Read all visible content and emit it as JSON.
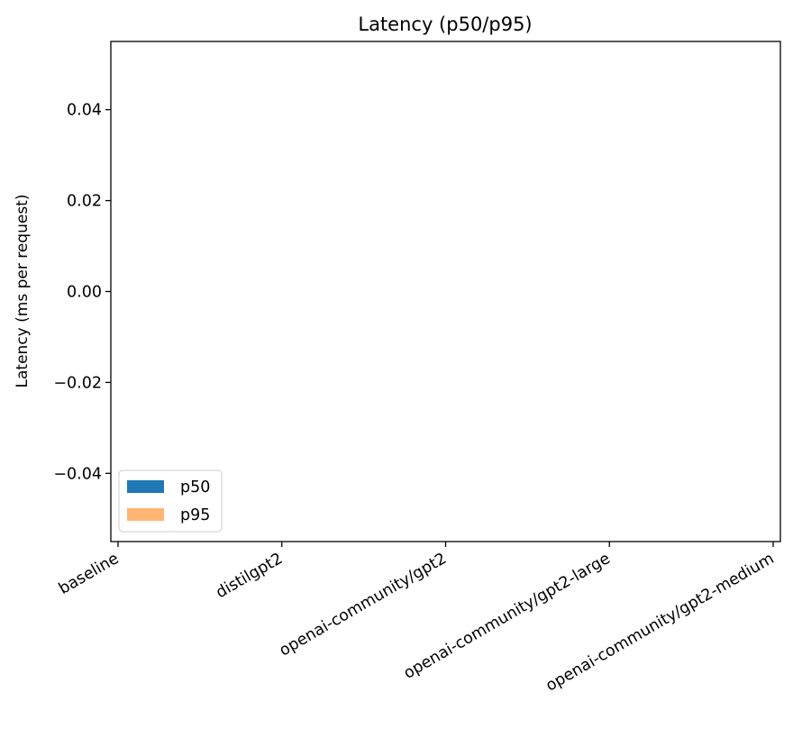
{
  "chart_data": {
    "type": "bar",
    "title": "Latency (p50/p95)",
    "xlabel": "",
    "ylabel": "Latency (ms per request)",
    "categories": [
      "baseline",
      "distilgpt2",
      "openai-community/gpt2",
      "openai-community/gpt2-large",
      "openai-community/gpt2-medium"
    ],
    "series": [
      {
        "name": "p50",
        "color": "#1f77b4",
        "values": [
          0,
          0,
          0,
          0,
          0
        ]
      },
      {
        "name": "p95",
        "color": "#ffb574",
        "values": [
          0,
          0,
          0,
          0,
          0
        ]
      }
    ],
    "ylim": [
      -0.055,
      0.055
    ],
    "yticks": [
      -0.04,
      -0.02,
      0.0,
      0.02,
      0.04
    ],
    "ytick_labels": [
      "−0.04",
      "−0.02",
      "0.00",
      "0.02",
      "0.04"
    ],
    "grid": false,
    "legend_position": "lower-left"
  }
}
